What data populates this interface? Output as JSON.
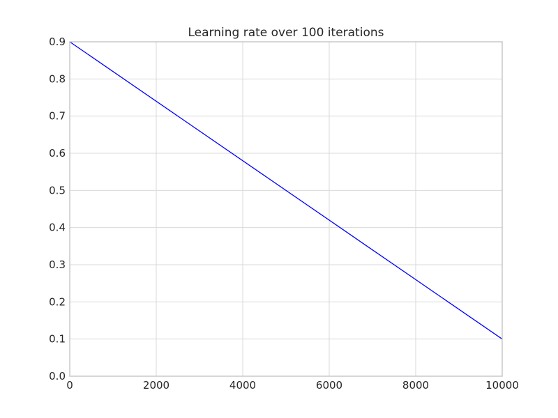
{
  "chart_data": {
    "type": "line",
    "title": "Learning rate over 100 iterations",
    "xlabel": "",
    "ylabel": "",
    "xlim": [
      0,
      10000
    ],
    "ylim": [
      0.0,
      0.9
    ],
    "grid": true,
    "x_ticks": [
      "0",
      "2000",
      "4000",
      "6000",
      "8000",
      "10000"
    ],
    "y_ticks": [
      "0.0",
      "0.1",
      "0.2",
      "0.3",
      "0.4",
      "0.5",
      "0.6",
      "0.7",
      "0.8",
      "0.9"
    ],
    "series": [
      {
        "color": "#0000ff",
        "x": [
          0,
          10000
        ],
        "y": [
          0.9,
          0.1
        ]
      }
    ]
  }
}
